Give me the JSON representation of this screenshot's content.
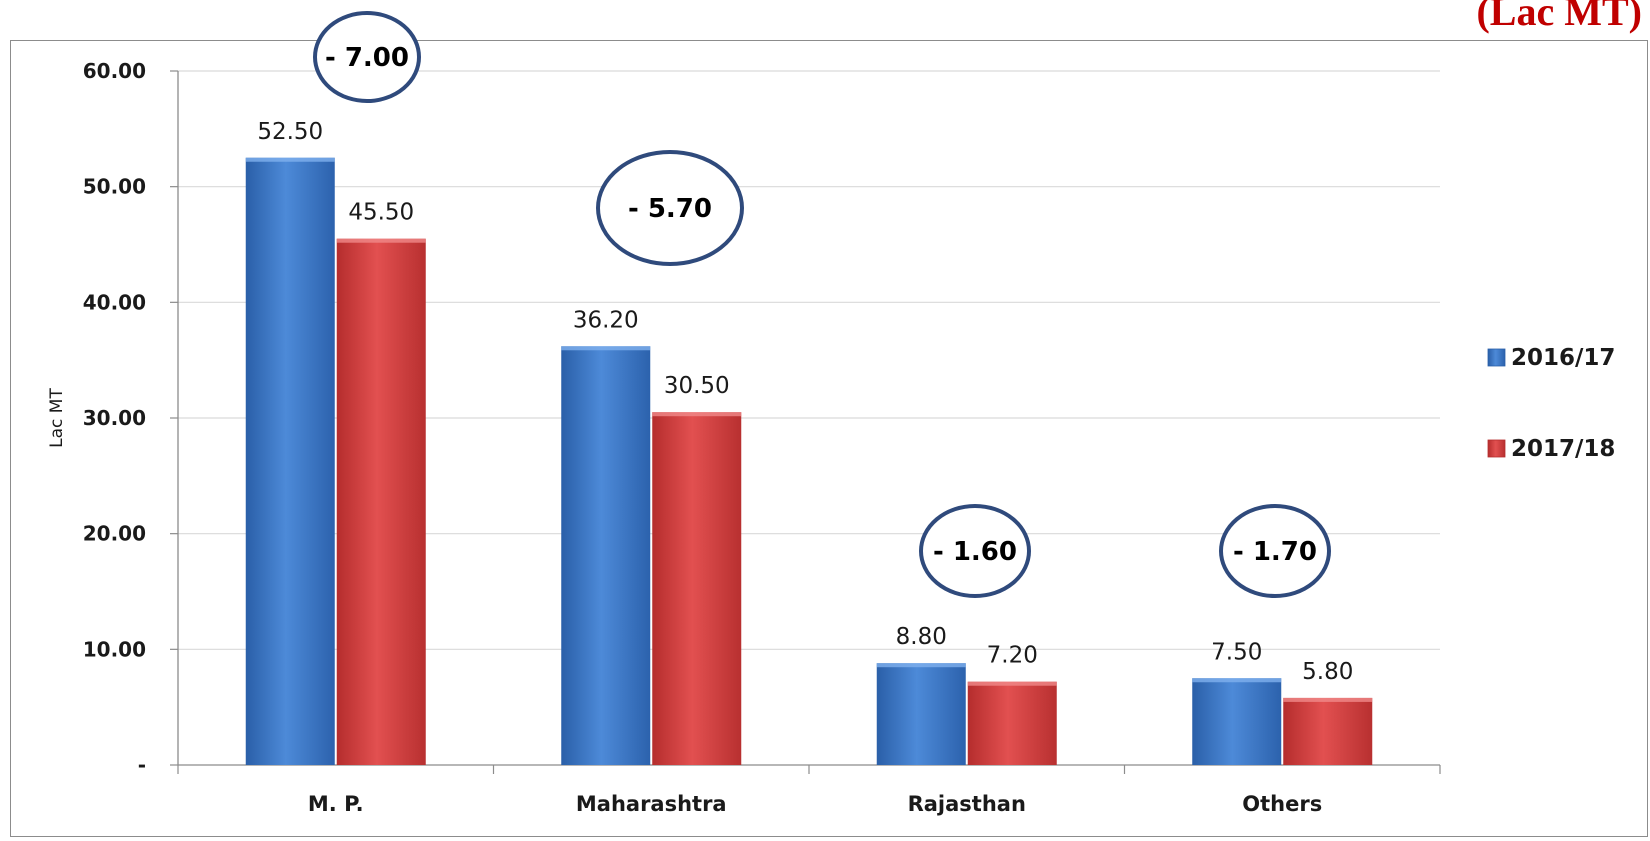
{
  "unit_title": "(Lac MT)",
  "colors": {
    "series_2016_17": "#3a78c9",
    "series_2017_18": "#d64040",
    "annotation_border": "#2f4a7c"
  },
  "chart_data": {
    "type": "bar",
    "title": "",
    "xlabel": "",
    "ylabel": "Lac MT",
    "ylim": [
      0,
      60
    ],
    "yticks": [
      {
        "value": 0,
        "label": "-"
      },
      {
        "value": 10,
        "label": "10.00"
      },
      {
        "value": 20,
        "label": "20.00"
      },
      {
        "value": 30,
        "label": "30.00"
      },
      {
        "value": 40,
        "label": "40.00"
      },
      {
        "value": 50,
        "label": "50.00"
      },
      {
        "value": 60,
        "label": "60.00"
      }
    ],
    "grid": true,
    "legend_position": "right",
    "categories": [
      "M. P.",
      "Maharashtra",
      "Rajasthan",
      "Others"
    ],
    "series": [
      {
        "name": "2016/17",
        "values": [
          52.5,
          36.2,
          8.8,
          7.5
        ],
        "labels": [
          "52.50",
          "36.20",
          "8.80",
          "7.50"
        ]
      },
      {
        "name": "2017/18",
        "values": [
          45.5,
          30.5,
          7.2,
          5.8
        ],
        "labels": [
          "45.50",
          "30.50",
          "7.20",
          "5.80"
        ]
      }
    ],
    "annotations": [
      {
        "category": "M. P.",
        "text": "- 7.00"
      },
      {
        "category": "Maharashtra",
        "text": "- 5.70"
      },
      {
        "category": "Rajasthan",
        "text": "- 1.60"
      },
      {
        "category": "Others",
        "text": "- 1.70"
      }
    ]
  }
}
